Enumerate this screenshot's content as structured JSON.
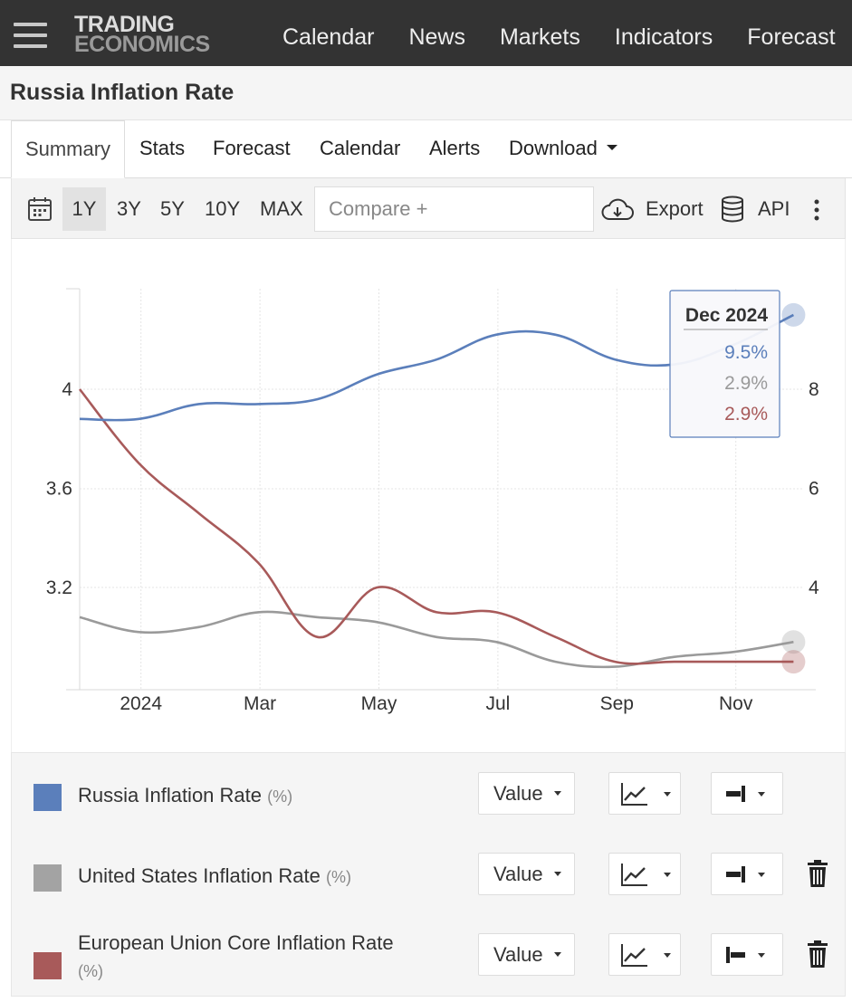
{
  "header": {
    "logo_line1": "TRADING",
    "logo_line2": "ECONOMICS",
    "nav": [
      "Calendar",
      "News",
      "Markets",
      "Indicators",
      "Forecast"
    ]
  },
  "page_title": "Russia Inflation Rate",
  "tabs": [
    "Summary",
    "Stats",
    "Forecast",
    "Calendar",
    "Alerts",
    "Download"
  ],
  "toolbar": {
    "ranges": [
      "1Y",
      "3Y",
      "5Y",
      "10Y",
      "MAX"
    ],
    "selected_range": "1Y",
    "compare_placeholder": "Compare +",
    "export_label": "Export",
    "api_label": "API"
  },
  "tooltip": {
    "date": "Dec 2024",
    "values": [
      "9.5%",
      "2.9%",
      "2.9%"
    ],
    "colors": [
      "#5b7fbb",
      "#9a9a9a",
      "#a85a5a"
    ]
  },
  "chart_data": {
    "type": "line",
    "x_tick_labels": [
      "2024",
      "Mar",
      "May",
      "Jul",
      "Sep",
      "Nov"
    ],
    "x": [
      "Dec 2023",
      "Jan 2024",
      "Feb 2024",
      "Mar 2024",
      "Apr 2024",
      "May 2024",
      "Jun 2024",
      "Jul 2024",
      "Aug 2024",
      "Sep 2024",
      "Oct 2024",
      "Nov 2024",
      "Dec 2024"
    ],
    "left_axis": {
      "ticks": [
        3.2,
        3.6,
        4
      ],
      "range": [
        2.8,
        4.4
      ]
    },
    "right_axis": {
      "ticks": [
        4,
        6,
        8
      ],
      "range": [
        2,
        10
      ]
    },
    "series": [
      {
        "name": "Russia Inflation Rate",
        "axis": "right",
        "color": "#5b7fbb",
        "values": [
          7.4,
          7.4,
          7.7,
          7.7,
          7.8,
          8.3,
          8.6,
          9.1,
          9.1,
          8.6,
          8.5,
          8.9,
          9.5
        ]
      },
      {
        "name": "United States Inflation Rate",
        "axis": "right",
        "color": "#9a9a9a",
        "values": [
          3.4,
          3.1,
          3.2,
          3.5,
          3.4,
          3.3,
          3.0,
          2.9,
          2.5,
          2.4,
          2.6,
          2.7,
          2.9
        ]
      },
      {
        "name": "European Union Core Inflation Rate",
        "axis": "left",
        "color": "#a85a5a",
        "values": [
          4.0,
          3.7,
          3.5,
          3.3,
          3.0,
          3.2,
          3.1,
          3.1,
          3.0,
          2.9,
          2.9,
          2.9,
          2.9
        ]
      }
    ],
    "grid": true,
    "legend_placement": "bottom"
  },
  "legend": {
    "items": [
      {
        "name": "Russia Inflation Rate",
        "unit": "(%)",
        "color": "#5b7fbb",
        "value_label": "Value",
        "deletable": false
      },
      {
        "name": "United States Inflation Rate",
        "unit": "(%)",
        "color": "#a3a3a3",
        "value_label": "Value",
        "deletable": true
      },
      {
        "name": "European Union Core Inflation Rate",
        "unit": "(%)",
        "color": "#a85a5a",
        "value_label": "Value",
        "deletable": true
      }
    ]
  }
}
